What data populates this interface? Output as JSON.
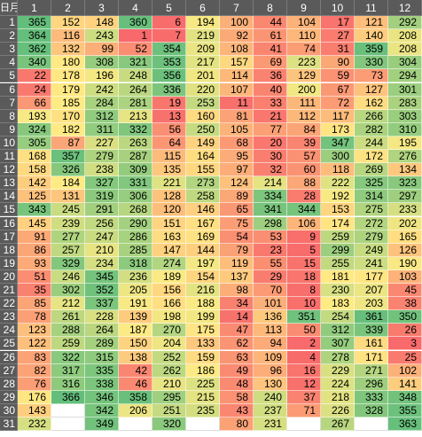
{
  "table": {
    "corner": "日月",
    "columns": [
      "1",
      "2",
      "3",
      "4",
      "5",
      "6",
      "7",
      "8",
      "9",
      "10",
      "11",
      "12"
    ],
    "color_scale": [
      "#f8696b",
      "#ffeb84",
      "#63be7b"
    ],
    "rows": [
      {
        "label": "1",
        "values": [
          365,
          152,
          148,
          360,
          6,
          194,
          100,
          44,
          104,
          17,
          121,
          292
        ]
      },
      {
        "label": "2",
        "values": [
          364,
          116,
          243,
          1,
          7,
          219,
          92,
          61,
          110,
          27,
          140,
          208
        ]
      },
      {
        "label": "3",
        "values": [
          362,
          132,
          99,
          52,
          354,
          209,
          108,
          41,
          74,
          31,
          359,
          208
        ]
      },
      {
        "label": "4",
        "values": [
          340,
          180,
          308,
          321,
          353,
          217,
          157,
          69,
          223,
          90,
          330,
          304
        ]
      },
      {
        "label": "5",
        "values": [
          22,
          178,
          196,
          248,
          356,
          201,
          114,
          36,
          129,
          59,
          73,
          294
        ]
      },
      {
        "label": "6",
        "values": [
          24,
          179,
          242,
          264,
          336,
          220,
          107,
          40,
          200,
          67,
          127,
          301
        ]
      },
      {
        "label": "7",
        "values": [
          66,
          185,
          284,
          281,
          19,
          253,
          11,
          33,
          111,
          72,
          162,
          283
        ]
      },
      {
        "label": "8",
        "values": [
          193,
          170,
          312,
          213,
          13,
          160,
          81,
          21,
          112,
          117,
          266,
          303
        ]
      },
      {
        "label": "9",
        "values": [
          324,
          182,
          311,
          332,
          56,
          250,
          105,
          77,
          84,
          173,
          282,
          310
        ]
      },
      {
        "label": "10",
        "values": [
          305,
          87,
          227,
          263,
          64,
          149,
          68,
          20,
          39,
          347,
          244,
          195
        ]
      },
      {
        "label": "11",
        "values": [
          168,
          357,
          279,
          287,
          115,
          164,
          95,
          30,
          57,
          300,
          172,
          276
        ]
      },
      {
        "label": "12",
        "values": [
          158,
          326,
          238,
          309,
          135,
          155,
          97,
          32,
          60,
          118,
          269,
          134
        ]
      },
      {
        "label": "13",
        "values": [
          142,
          184,
          327,
          331,
          221,
          273,
          124,
          214,
          88,
          222,
          325,
          323
        ]
      },
      {
        "label": "14",
        "values": [
          125,
          131,
          319,
          306,
          128,
          258,
          89,
          334,
          28,
          192,
          314,
          297
        ]
      },
      {
        "label": "15",
        "values": [
          343,
          245,
          291,
          268,
          120,
          146,
          65,
          341,
          344,
          153,
          275,
          233
        ]
      },
      {
        "label": "16",
        "values": [
          145,
          239,
          256,
          290,
          151,
          167,
          75,
          298,
          106,
          174,
          272,
          202
        ]
      },
      {
        "label": "17",
        "values": [
          91,
          277,
          247,
          286,
          163,
          169,
          54,
          53,
          9,
          259,
          279,
          165
        ]
      },
      {
        "label": "18",
        "values": [
          86,
          257,
          210,
          285,
          147,
          144,
          79,
          23,
          5,
          299,
          249,
          126
        ]
      },
      {
        "label": "19",
        "values": [
          93,
          329,
          234,
          318,
          274,
          197,
          119,
          55,
          15,
          255,
          241,
          190
        ]
      },
      {
        "label": "20",
        "values": [
          51,
          246,
          345,
          236,
          189,
          154,
          137,
          29,
          18,
          181,
          177,
          103
        ]
      },
      {
        "label": "21",
        "values": [
          35,
          302,
          352,
          205,
          156,
          216,
          98,
          70,
          8,
          230,
          207,
          45
        ]
      },
      {
        "label": "22",
        "values": [
          85,
          212,
          337,
          191,
          166,
          188,
          34,
          101,
          10,
          183,
          203,
          38
        ]
      },
      {
        "label": "23",
        "values": [
          78,
          261,
          228,
          139,
          198,
          199,
          14,
          136,
          351,
          254,
          361,
          350
        ]
      },
      {
        "label": "24",
        "values": [
          123,
          288,
          264,
          187,
          270,
          175,
          47,
          113,
          50,
          312,
          339,
          26
        ]
      },
      {
        "label": "25",
        "values": [
          122,
          259,
          289,
          150,
          204,
          133,
          62,
          94,
          2,
          307,
          161,
          3
        ]
      },
      {
        "label": "26",
        "values": [
          83,
          322,
          315,
          138,
          252,
          159,
          63,
          109,
          4,
          278,
          171,
          25
        ]
      },
      {
        "label": "27",
        "values": [
          82,
          317,
          335,
          42,
          262,
          186,
          49,
          96,
          16,
          229,
          271,
          102
        ]
      },
      {
        "label": "28",
        "values": [
          76,
          316,
          338,
          46,
          210,
          225,
          48,
          130,
          12,
          224,
          296,
          141
        ]
      },
      {
        "label": "29",
        "values": [
          176,
          366,
          346,
          358,
          295,
          215,
          58,
          240,
          37,
          218,
          333,
          348
        ]
      },
      {
        "label": "30",
        "values": [
          143,
          null,
          342,
          206,
          251,
          235,
          43,
          237,
          71,
          226,
          328,
          355
        ]
      },
      {
        "label": "31",
        "values": [
          232,
          null,
          349,
          null,
          320,
          null,
          80,
          231,
          null,
          267,
          null,
          363
        ]
      }
    ]
  }
}
